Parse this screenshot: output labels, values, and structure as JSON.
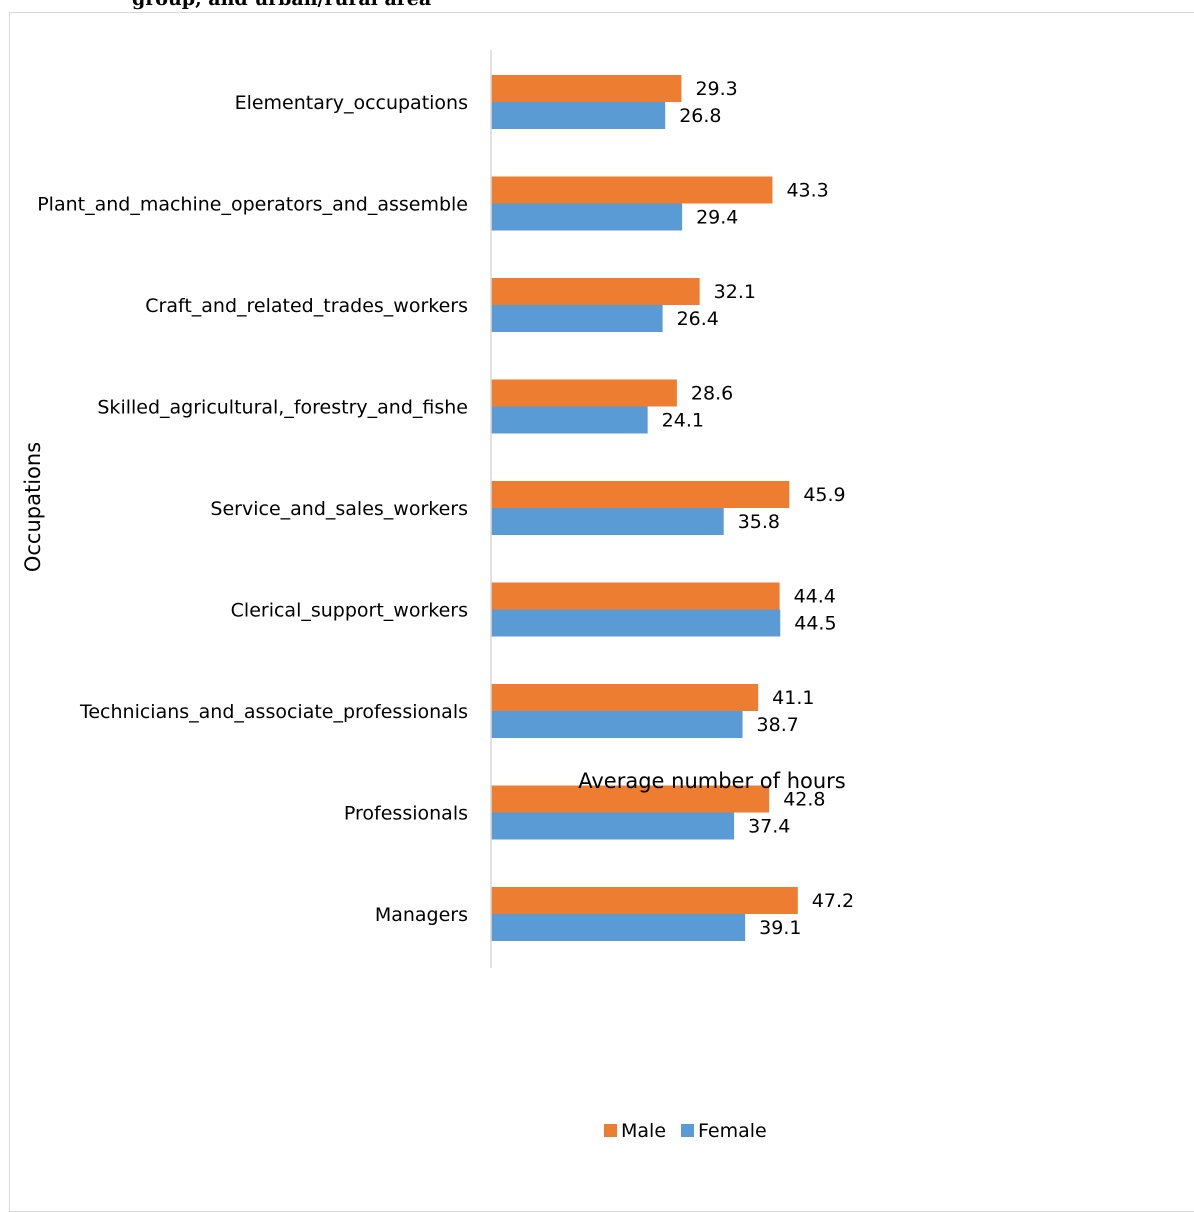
{
  "caption": "group, and urban/rural area",
  "chart_data": {
    "type": "bar",
    "orientation": "horizontal",
    "categories": [
      "Elementary_occupations",
      "Plant_and_machine_operators_and_assemble",
      "Craft_and_related_trades_workers",
      "Skilled_agricultural,_forestry_and_fishe",
      "Service_and_sales_workers",
      "Clerical_support_workers",
      "Technicians_and_associate_professionals",
      "Professionals",
      "Managers"
    ],
    "series": [
      {
        "name": "Male",
        "color": "#ed7d31",
        "values": [
          29.3,
          43.3,
          32.1,
          28.6,
          45.9,
          44.4,
          41.1,
          42.8,
          47.2
        ]
      },
      {
        "name": "Female",
        "color": "#5b9bd5",
        "values": [
          26.8,
          29.4,
          26.4,
          24.1,
          35.8,
          44.5,
          38.7,
          37.4,
          39.1
        ]
      }
    ],
    "xlabel": "Average number of hours",
    "ylabel": "Occupations",
    "xlim": [
      0,
      50
    ],
    "grid": false,
    "legend_position": "bottom"
  }
}
